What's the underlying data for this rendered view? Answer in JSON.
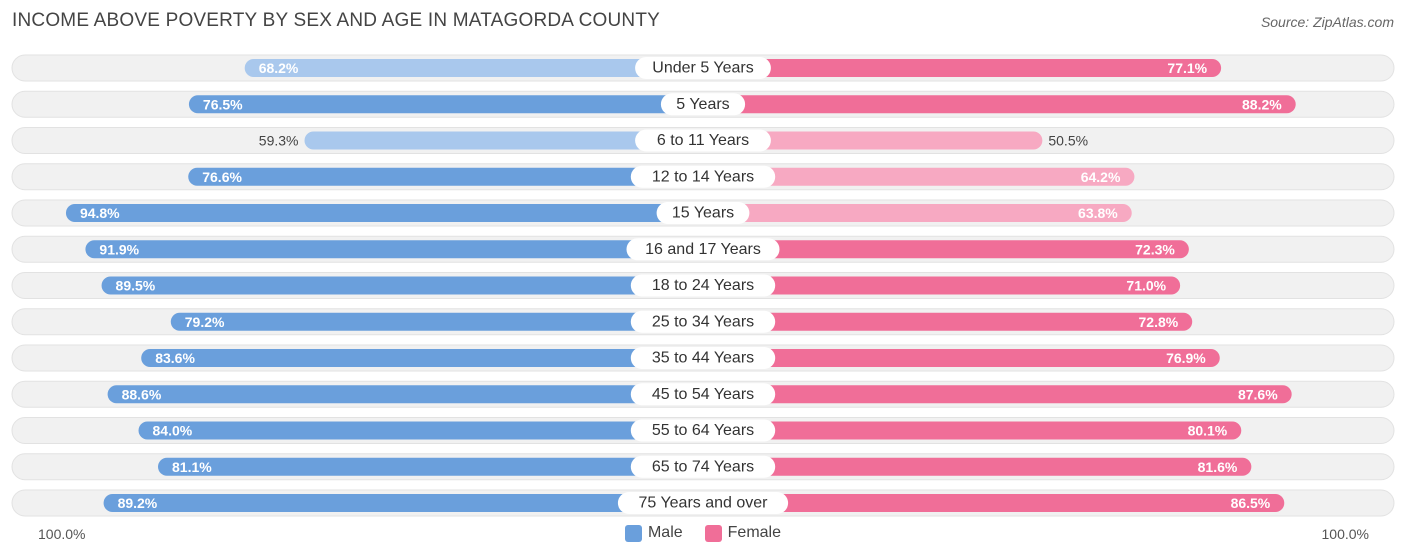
{
  "title": "INCOME ABOVE POVERTY BY SEX AND AGE IN MATAGORDA COUNTY",
  "source": "Source: ZipAtlas.com",
  "colors": {
    "male_strong": "#6a9fdc",
    "male_light": "#a9c8ed",
    "female_strong": "#f06e98",
    "female_light": "#f7a9c2",
    "track": "#f1f1f1",
    "label_pill": "#ffffff"
  },
  "chart_data": {
    "type": "bar",
    "orientation": "horizontal-diverging",
    "title": "INCOME ABOVE POVERTY BY SEX AND AGE IN MATAGORDA COUNTY",
    "categories": [
      "Under 5 Years",
      "5 Years",
      "6 to 11 Years",
      "12 to 14 Years",
      "15 Years",
      "16 and 17 Years",
      "18 to 24 Years",
      "25 to 34 Years",
      "35 to 44 Years",
      "45 to 54 Years",
      "55 to 64 Years",
      "65 to 74 Years",
      "75 Years and over"
    ],
    "series": [
      {
        "name": "Male",
        "values": [
          68.2,
          76.5,
          59.3,
          76.6,
          94.8,
          91.9,
          89.5,
          79.2,
          83.6,
          88.6,
          84.0,
          81.1,
          89.2
        ],
        "labels": [
          "68.2%",
          "76.5%",
          "59.3%",
          "76.6%",
          "94.8%",
          "91.9%",
          "89.5%",
          "79.2%",
          "83.6%",
          "88.6%",
          "84.0%",
          "81.1%",
          "89.2%"
        ]
      },
      {
        "name": "Female",
        "values": [
          77.1,
          88.2,
          50.5,
          64.2,
          63.8,
          72.3,
          71.0,
          72.8,
          76.9,
          87.6,
          80.1,
          81.6,
          86.5
        ],
        "labels": [
          "77.1%",
          "88.2%",
          "50.5%",
          "64.2%",
          "63.8%",
          "72.3%",
          "71.0%",
          "72.8%",
          "76.9%",
          "87.6%",
          "80.1%",
          "81.6%",
          "86.5%"
        ]
      }
    ],
    "xlim": [
      0,
      100
    ],
    "axis_left_label": "100.0%",
    "axis_right_label": "100.0%",
    "legend": [
      "Male",
      "Female"
    ],
    "legend_position": "bottom-center"
  }
}
